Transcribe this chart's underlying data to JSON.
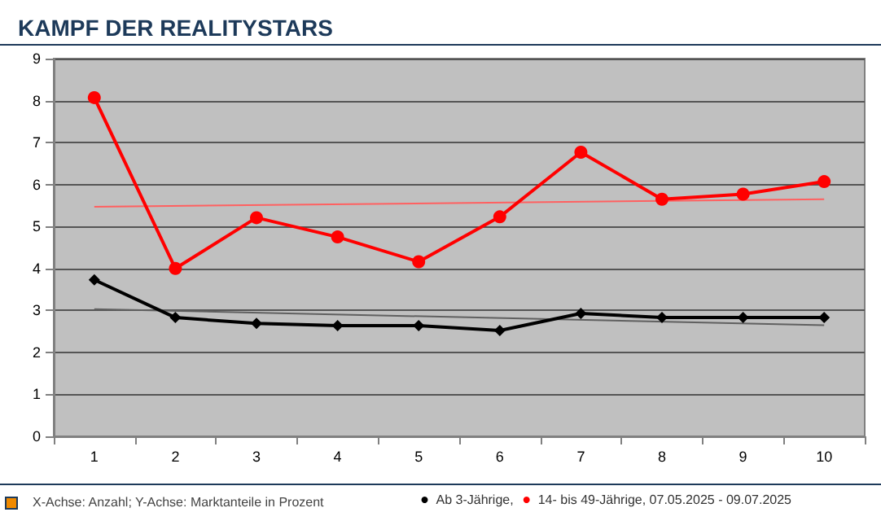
{
  "chart_data": {
    "type": "line",
    "title": "KAMPF DER REALITYSTARS",
    "categories": [
      "1",
      "2",
      "3",
      "4",
      "5",
      "6",
      "7",
      "8",
      "9",
      "10"
    ],
    "series": [
      {
        "name": "Ab 3-Jährige,",
        "color": "#000000",
        "marker": "diamond",
        "values": [
          3.73,
          2.83,
          2.69,
          2.64,
          2.64,
          2.52,
          2.93,
          2.83,
          2.83,
          2.83
        ]
      },
      {
        "name": "14- bis 49-Jährige, 07.05.2025 - 09.07.2025",
        "color": "#ff0000",
        "marker": "circle",
        "values": [
          8.07,
          4.0,
          5.21,
          4.75,
          4.16,
          5.23,
          6.77,
          5.65,
          5.77,
          6.07
        ]
      },
      {
        "color": "#606060",
        "marker": "none",
        "x": [
          "1",
          "10"
        ],
        "values": [
          3.03,
          2.65
        ]
      },
      {
        "color": "#ff6060",
        "marker": "none",
        "x": [
          "1",
          "10"
        ],
        "values": [
          5.47,
          5.65
        ]
      }
    ],
    "ylim": [
      0,
      9
    ],
    "yticks": [
      0,
      1,
      2,
      3,
      4,
      5,
      6,
      7,
      8,
      9
    ],
    "grid": "y",
    "legend": "bottom right",
    "annotations": [
      "X-Achse: Anzahl; Y-Achse: Marktanteile in Prozent"
    ]
  }
}
